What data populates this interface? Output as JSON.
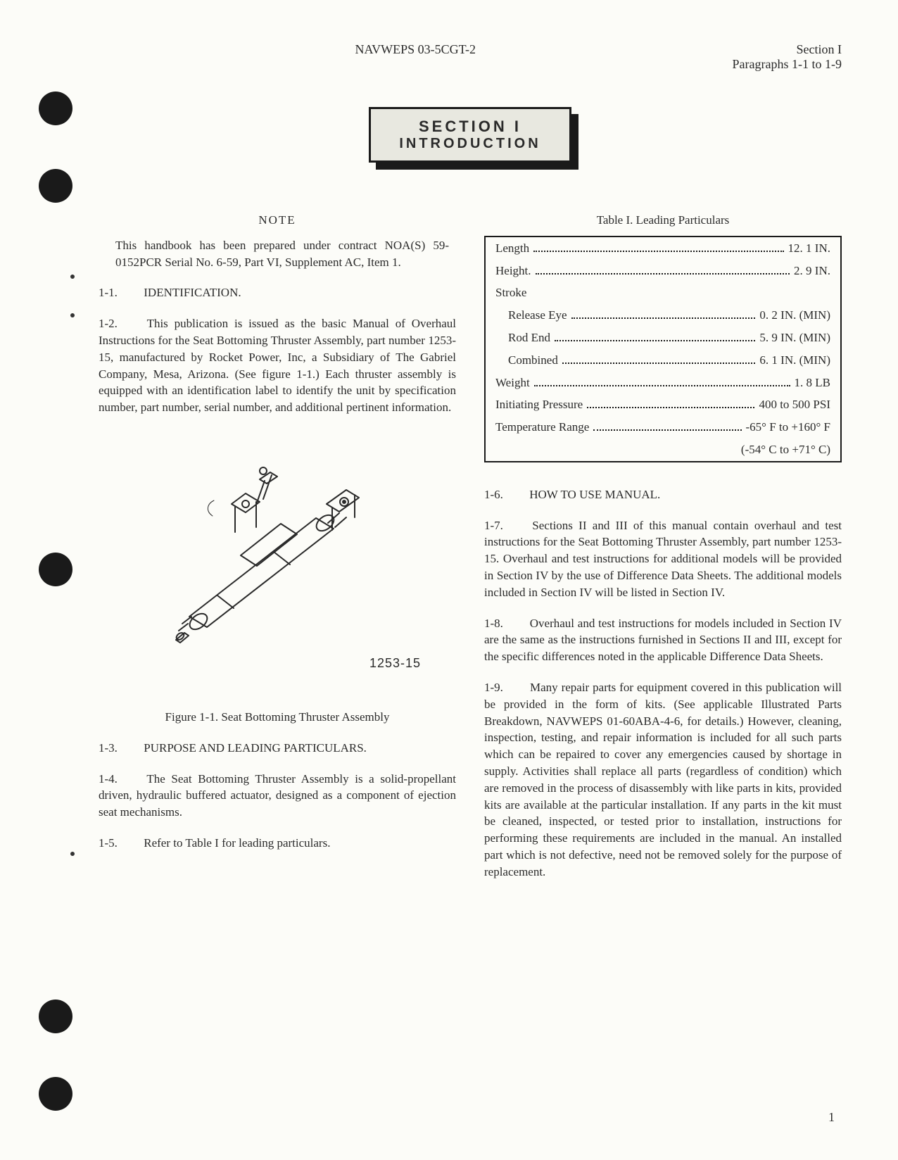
{
  "header": {
    "center": "NAVWEPS 03-5CGT-2",
    "right1": "Section I",
    "right2": "Paragraphs 1-1 to 1-9"
  },
  "banner": {
    "line1": "SECTION I",
    "line2": "INTRODUCTION"
  },
  "note": {
    "title": "NOTE",
    "body": "This handbook has been prepared under contract NOA(S) 59-0152PCR Serial No. 6-59, Part VI, Supplement AC, Item 1."
  },
  "left": {
    "h11": {
      "num": "1-1.",
      "title": "IDENTIFICATION."
    },
    "p12": {
      "num": "1-2.",
      "text": "This publication is issued as the basic Manual of Overhaul Instructions for the Seat Bottoming Thruster Assembly, part number 1253-15, manufactured by Rocket Power, Inc, a Subsidiary of The Gabriel Company, Mesa, Arizona. (See figure 1-1.) Each thruster assembly is equipped with an identification label to identify the unit by specification number, part number, serial number, and additional pertinent information."
    },
    "figure": {
      "part": "1253-15",
      "caption": "Figure 1-1.  Seat Bottoming Thruster Assembly"
    },
    "h13": {
      "num": "1-3.",
      "title": "PURPOSE AND LEADING PARTICULARS."
    },
    "p14": {
      "num": "1-4.",
      "text": "The Seat Bottoming Thruster Assembly is a solid-propellant driven, hydraulic buffered actuator, designed as a component of ejection seat mechanisms."
    },
    "p15": {
      "num": "1-5.",
      "text": "Refer to Table I for leading particulars."
    }
  },
  "table": {
    "caption": "Table I.   Leading Particulars",
    "rows": [
      {
        "label": "Length",
        "value": "12. 1 IN.",
        "indent": false
      },
      {
        "label": "Height.",
        "value": "2. 9 IN.",
        "indent": false
      },
      {
        "label": "Stroke",
        "value": "",
        "indent": false
      },
      {
        "label": "Release Eye",
        "value": "0. 2 IN. (MIN)",
        "indent": true
      },
      {
        "label": "Rod End",
        "value": "5. 9 IN. (MIN)",
        "indent": true
      },
      {
        "label": "Combined",
        "value": "6. 1 IN. (MIN)",
        "indent": true
      },
      {
        "label": "Weight",
        "value": "1. 8 LB",
        "indent": false
      },
      {
        "label": "Initiating Pressure",
        "value": "400 to 500 PSI",
        "indent": false
      },
      {
        "label": "Temperature Range",
        "value": "-65° F to +160° F",
        "indent": false
      }
    ],
    "extra": "(-54° C to +71° C)"
  },
  "right": {
    "h16": {
      "num": "1-6.",
      "title": "HOW TO USE MANUAL."
    },
    "p17": {
      "num": "1-7.",
      "text": "Sections II and III of this manual contain overhaul and test instructions for the Seat Bottoming Thruster Assembly, part number 1253-15. Overhaul and test instructions for additional models will be provided in Section IV by the use of Difference Data Sheets. The additional models included in Section IV will be listed in Section IV."
    },
    "p18": {
      "num": "1-8.",
      "text": "Overhaul and test instructions for models included in Section IV are the same as the instructions furnished in Sections II and III, except for the specific differences noted in the applicable Difference Data Sheets."
    },
    "p19": {
      "num": "1-9.",
      "text": "Many repair parts for equipment covered in this publication will be provided in the form of kits. (See applicable Illustrated Parts Breakdown, NAVWEPS 01-60ABA-4-6, for details.) However, cleaning, inspection, testing, and repair information is included for all such parts which can be repaired to cover any emergencies caused by shortage in supply. Activities shall replace all parts (regardless of condition) which are removed in the process of disassembly with like parts in kits, provided kits are available at the particular installation. If any parts in the kit must be cleaned, inspected, or tested prior to installation, instructions for performing these requirements are included in the manual. An installed part which is not defective, need not be removed solely for the purpose of replacement."
    }
  },
  "pageNumber": "1",
  "style": {
    "stroke": "#2a2a2a",
    "strokeWidth": 2,
    "fill": "none"
  }
}
